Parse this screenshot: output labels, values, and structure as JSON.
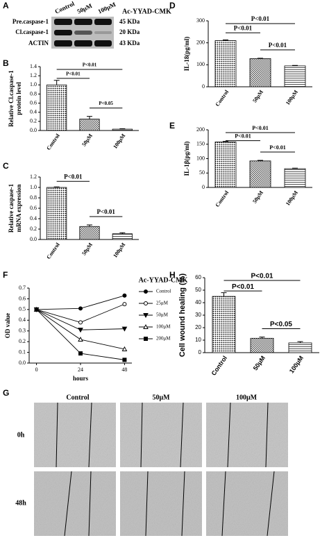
{
  "blot": {
    "panel": "A",
    "columns": [
      "Control",
      "50μM",
      "100μM"
    ],
    "treatment": "Ac-YYAD-CMK",
    "rows": [
      "Pre.caspase-1",
      "Cl.caspase-1",
      "ACTIN"
    ],
    "sizes": [
      "45 KDa",
      "20 KDa",
      "43 KDa"
    ]
  },
  "chart_data": [
    {
      "type": "bar",
      "panel": "B",
      "ylabel": [
        "Relative Cl.caspase-1",
        "protein level"
      ],
      "categories": [
        "Control",
        "50μM",
        "100μM"
      ],
      "values": [
        1.0,
        0.25,
        0.03
      ],
      "errors": [
        0.1,
        0.06,
        0.01
      ],
      "ylim": [
        0,
        1.4
      ],
      "yticks": [
        {
          "value": 0,
          "label": "0.0"
        },
        0.2,
        0.4,
        0.6,
        0.8,
        {
          "value": 1,
          "label": "1.0"
        },
        1.2,
        1.4
      ],
      "annotations": [
        "P<0.01",
        "P<0.01",
        "P<0.05"
      ],
      "bar_patterns": [
        "dots",
        "checks",
        "stripes"
      ]
    },
    {
      "type": "bar",
      "panel": "C",
      "ylabel": [
        "Relative caspase-1",
        "mRNA expression"
      ],
      "categories": [
        "Control",
        "50μM",
        "100μM"
      ],
      "values": [
        1.0,
        0.25,
        0.11
      ],
      "errors": [
        0.01,
        0.03,
        0.02
      ],
      "ylim": [
        0,
        1.2
      ],
      "yticks": [
        {
          "value": 0,
          "label": "0.0"
        },
        0.2,
        0.4,
        0.6,
        0.8,
        {
          "value": 1,
          "label": "1.0"
        },
        1.2
      ],
      "annotations": [
        "P<0.01",
        "P<0.01"
      ],
      "bar_patterns": [
        "dots",
        "checks",
        "stripes"
      ]
    },
    {
      "type": "bar",
      "panel": "D",
      "ylabel": [
        "IL-18(pg/ml)"
      ],
      "categories": [
        "Control",
        "50μM",
        "100μM"
      ],
      "values": [
        210,
        128,
        95
      ],
      "errors": [
        3,
        2,
        2
      ],
      "ylim": [
        0,
        300
      ],
      "yticks": [
        0,
        100,
        200,
        300
      ],
      "annotations": [
        "P<0.01",
        "P<0.01",
        "P<0.01"
      ],
      "bar_patterns": [
        "dots",
        "checks",
        "stripes"
      ]
    },
    {
      "type": "bar",
      "panel": "E",
      "ylabel": [
        "IL-1β(pg/ml)"
      ],
      "categories": [
        "Control",
        "50μM",
        "100μM"
      ],
      "values": [
        158,
        92,
        65
      ],
      "errors": [
        2,
        2,
        2
      ],
      "ylim": [
        0,
        200
      ],
      "yticks": [
        0,
        50,
        100,
        150,
        200
      ],
      "annotations": [
        "P<0.01",
        "P<0.01",
        "P<0.01"
      ],
      "bar_patterns": [
        "dots",
        "checks",
        "stripes"
      ]
    },
    {
      "type": "line",
      "panel": "F",
      "title": "Ac-YYAD-CMK",
      "xlabel": "hours",
      "ylabel": [
        "OD value"
      ],
      "x": [
        0,
        24,
        48
      ],
      "xlim": [
        -4,
        52
      ],
      "xticks": [
        0,
        24,
        48
      ],
      "ylim": [
        0,
        0.7
      ],
      "yticks": [
        {
          "value": 0,
          "label": "0.0"
        },
        0.1,
        0.2,
        0.3,
        0.4,
        0.5,
        0.6,
        0.7
      ],
      "series": [
        {
          "name": "Control",
          "color": "#000000",
          "marker": "circle",
          "values": [
            0.5,
            0.51,
            0.63
          ]
        },
        {
          "name": "25μM",
          "color": "#000000",
          "marker": "open-circle",
          "values": [
            0.5,
            0.38,
            0.55
          ]
        },
        {
          "name": "50μM",
          "color": "#000000",
          "marker": "triangle-down",
          "values": [
            0.5,
            0.31,
            0.32
          ]
        },
        {
          "name": "100μM",
          "color": "#000000",
          "marker": "open-triangle",
          "values": [
            0.5,
            0.22,
            0.13
          ]
        },
        {
          "name": "200μM",
          "color": "#000000",
          "marker": "square",
          "values": [
            0.5,
            0.09,
            0.03
          ]
        }
      ]
    },
    {
      "type": "bar",
      "panel": "H",
      "ylabel": [
        "Cell wound healing (%)"
      ],
      "categories": [
        "Control",
        "50μM",
        "100μM"
      ],
      "values": [
        45,
        11.5,
        7.8
      ],
      "errors": [
        3,
        1,
        1
      ],
      "ylim": [
        0,
        60
      ],
      "yticks": [
        0,
        10,
        20,
        30,
        40,
        50,
        60
      ],
      "annotations": [
        "P<0.01",
        "P<0.01",
        "P<0.05"
      ],
      "bar_patterns": [
        "dots",
        "checks",
        "stripes"
      ]
    }
  ],
  "micrographs": {
    "panel": "G",
    "columns": [
      "Control",
      "50μM",
      "100μM"
    ],
    "rows": [
      "0h",
      "48h"
    ]
  }
}
